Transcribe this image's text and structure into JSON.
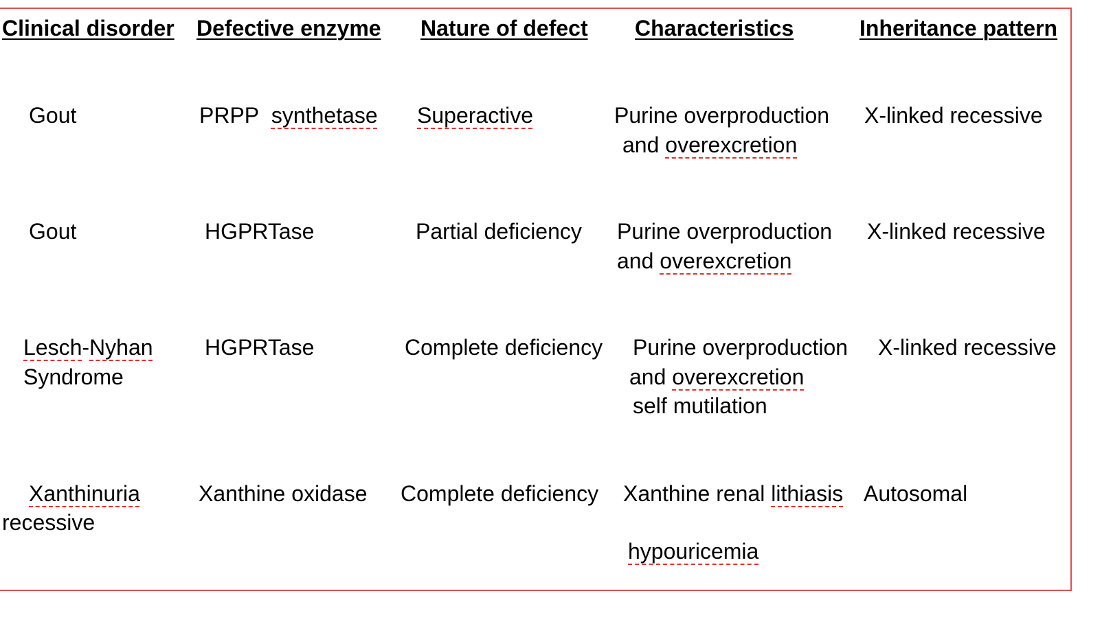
{
  "headers": [
    "Clinical disorder",
    "Defective enzyme",
    "Nature of defect",
    "Characteristics",
    "Inheritance pattern"
  ],
  "rows": [
    {
      "disorder": [
        "Gout"
      ],
      "enzyme": "PRPP",
      "enzyme_b": "synthetase",
      "defect": "Superactive",
      "characteristics_a": "Purine overproduction",
      "characteristics_b1": "and",
      "characteristics_b2": "overexcretion",
      "inheritance": "X-linked recessive"
    },
    {
      "disorder": [
        "Gout"
      ],
      "enzyme": "HGPRTase",
      "defect": "Partial deficiency",
      "characteristics_a": "Purine overproduction",
      "characteristics_b1": "and",
      "characteristics_b2": "overexcretion",
      "inheritance": "X-linked recessive"
    },
    {
      "disorder_a1": "Lesch",
      "disorder_a2": "Nyhan",
      "disorder_b": "Syndrome",
      "enzyme": "HGPRTase",
      "defect": "Complete deficiency",
      "characteristics_a": "Purine overproduction",
      "characteristics_b1": "and",
      "characteristics_b2": "overexcretion",
      "characteristics_c": "self mutilation",
      "inheritance": "X-linked recessive"
    },
    {
      "disorder_a": "Xanthinuria",
      "disorder_b": "recessive",
      "enzyme": "Xanthine oxidase",
      "defect": "Complete deficiency",
      "characteristics_a1": "Xanthine renal",
      "characteristics_a2": "lithiasis",
      "characteristics_b": "hypouricemia",
      "inheritance": "Autosomal"
    }
  ]
}
